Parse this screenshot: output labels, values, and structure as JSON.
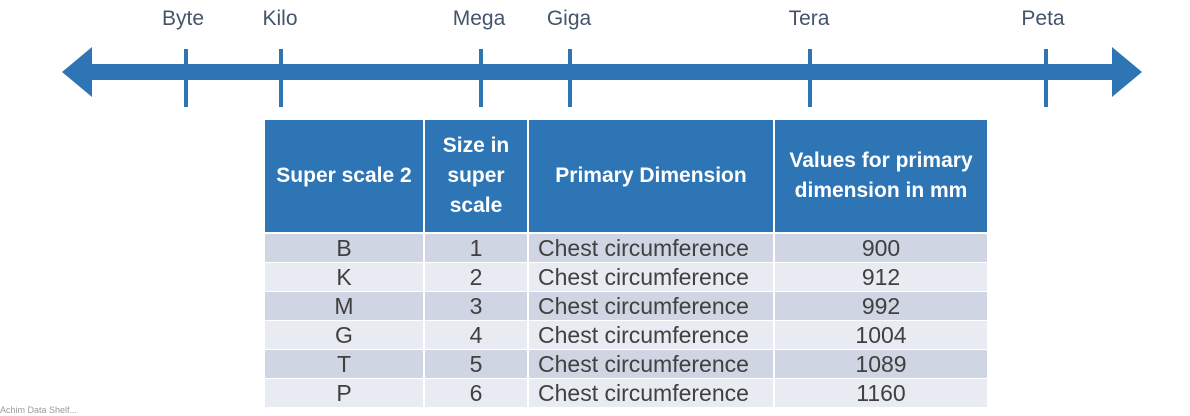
{
  "scale": {
    "labels": [
      "Byte",
      "Kilo",
      "Mega",
      "Giga",
      "Tera",
      "Peta"
    ],
    "arrow_color": "#2e75b6"
  },
  "table": {
    "headers": [
      "Super scale 2",
      "Size in super scale",
      "Primary Dimension",
      "Values for primary dimension in mm"
    ],
    "rows": [
      [
        "B",
        "1",
        "Chest circumference",
        "900"
      ],
      [
        "K",
        "2",
        "Chest circumference",
        "912"
      ],
      [
        "M",
        "3",
        "Chest circumference",
        "992"
      ],
      [
        "G",
        "4",
        "Chest circumference",
        "1004"
      ],
      [
        "T",
        "5",
        "Chest circumference",
        "1089"
      ],
      [
        "P",
        "6",
        "Chest circumference",
        "1160"
      ]
    ],
    "header_color": "#2e75b6",
    "row_colors": [
      "#cfd5e2",
      "#e8ebf2"
    ]
  },
  "footer": {
    "text": "Achim Data Shelf..."
  }
}
